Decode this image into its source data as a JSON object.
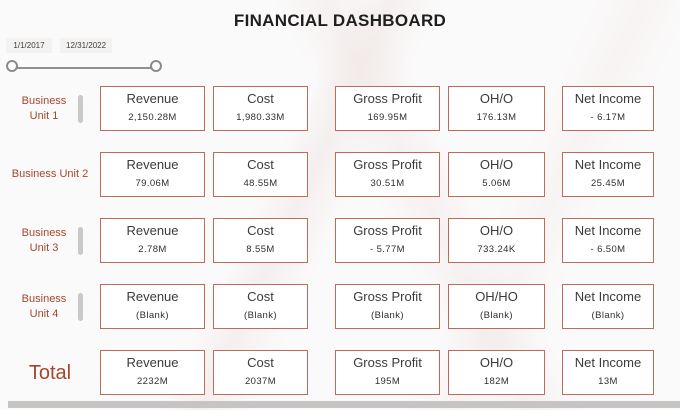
{
  "title": "FINANCIAL DASHBOARD",
  "date_slicer": {
    "start_date": "1/1/2017",
    "end_date": "12/31/2022"
  },
  "colors": {
    "accent_red": "#a3472c",
    "card_border": "#bd6b5d",
    "title_text": "#1e1e1e",
    "scrollbar_gray": "#c7c5c4"
  },
  "rows": [
    {
      "label": "Business Unit 1",
      "cards": [
        {
          "title": "Revenue",
          "value": "2,150.28M"
        },
        {
          "title": "Cost",
          "value": "1,980.33M"
        },
        {
          "title": "Gross Profit",
          "value": "169.95M"
        },
        {
          "title": "OH/O",
          "value": "176.13M"
        },
        {
          "title": "Net Income",
          "value": "- 6.17M"
        }
      ]
    },
    {
      "label": "Business Unit 2",
      "cards": [
        {
          "title": "Revenue",
          "value": "79.06M"
        },
        {
          "title": "Cost",
          "value": "48.55M"
        },
        {
          "title": "Gross Profit",
          "value": "30.51M"
        },
        {
          "title": "OH/O",
          "value": "5.06M"
        },
        {
          "title": "Net Income",
          "value": "25.45M"
        }
      ]
    },
    {
      "label": "Business Unit 3",
      "cards": [
        {
          "title": "Revenue",
          "value": "2.78M"
        },
        {
          "title": "Cost",
          "value": "8.55M"
        },
        {
          "title": "Gross Profit",
          "value": "- 5.77M"
        },
        {
          "title": "OH/O",
          "value": "733.24K"
        },
        {
          "title": "Net Income",
          "value": "- 6.50M"
        }
      ]
    },
    {
      "label": "Business Unit 4",
      "cards": [
        {
          "title": "Revenue",
          "value": "(Blank)"
        },
        {
          "title": "Cost",
          "value": "(Blank)"
        },
        {
          "title": "Gross Profit",
          "value": "(Blank)"
        },
        {
          "title": "OH/HO",
          "value": "(Blank)"
        },
        {
          "title": "Net Income",
          "value": "(Blank)"
        }
      ]
    },
    {
      "label": "Total",
      "cards": [
        {
          "title": "Revenue",
          "value": "2232M"
        },
        {
          "title": "Cost",
          "value": "2037M"
        },
        {
          "title": "Gross Profit",
          "value": "195M"
        },
        {
          "title": "OH/O",
          "value": "182M"
        },
        {
          "title": "Net Income",
          "value": "13M"
        }
      ]
    }
  ],
  "chart_data": {
    "type": "table",
    "title": "FINANCIAL DASHBOARD",
    "date_range": [
      "1/1/2017",
      "12/31/2022"
    ],
    "columns": [
      "Revenue",
      "Cost",
      "Gross Profit",
      "OH/O",
      "Net Income"
    ],
    "row_labels": [
      "Business Unit 1",
      "Business Unit 2",
      "Business Unit 3",
      "Business Unit 4",
      "Total"
    ],
    "cells": [
      [
        "2,150.28M",
        "1,980.33M",
        "169.95M",
        "176.13M",
        "- 6.17M"
      ],
      [
        "79.06M",
        "48.55M",
        "30.51M",
        "5.06M",
        "25.45M"
      ],
      [
        "2.78M",
        "8.55M",
        "- 5.77M",
        "733.24K",
        "- 6.50M"
      ],
      [
        "(Blank)",
        "(Blank)",
        "(Blank)",
        "(Blank)",
        "(Blank)"
      ],
      [
        "2232M",
        "2037M",
        "195M",
        "182M",
        "13M"
      ]
    ]
  }
}
